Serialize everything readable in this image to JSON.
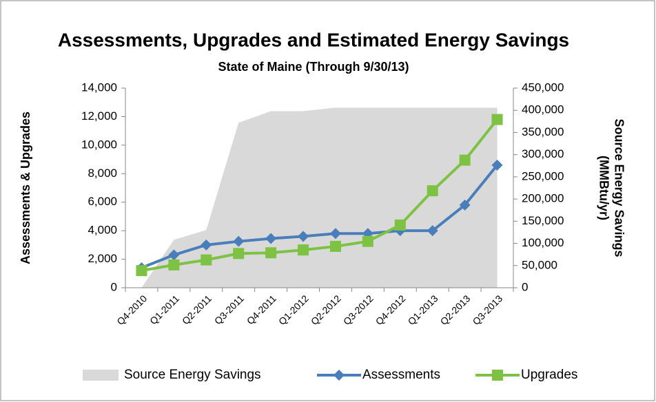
{
  "chart_data": {
    "type": "line",
    "title": "Assessments, Upgrades and Estimated Energy Savings",
    "subtitle": "State of Maine (Through 9/30/13)",
    "ylabel": "Assessments & Upgrades",
    "y2label": [
      "Source Energy Savings",
      "(MMBtu/yr)"
    ],
    "categories": [
      "Q4-2010",
      "Q1-2011",
      "Q2-2011",
      "Q3-2011",
      "Q4-2011",
      "Q1-2012",
      "Q2-2012",
      "Q3-2012",
      "Q4-2012",
      "Q1-2013",
      "Q2-2013",
      "Q3-2013"
    ],
    "series": [
      {
        "name": "Source Energy Savings",
        "color": "#d9d9d9",
        "kind": "area",
        "axis": "y2",
        "values": [
          0,
          108000,
          130000,
          372000,
          398000,
          398000,
          406000,
          406000,
          406000,
          406000,
          406000,
          406000
        ]
      },
      {
        "name": "Assessments",
        "color": "#4a7ebb",
        "kind": "line",
        "marker": "diamond",
        "values": [
          1400,
          2300,
          3000,
          3250,
          3450,
          3600,
          3800,
          3800,
          4000,
          4000,
          5800,
          8600
        ]
      },
      {
        "name": "Upgrades",
        "color": "#7dc242",
        "kind": "line",
        "marker": "square",
        "values": [
          1200,
          1600,
          1950,
          2400,
          2450,
          2650,
          2900,
          3250,
          4400,
          6800,
          8950,
          11800
        ]
      }
    ],
    "ylim": [
      0,
      14000
    ],
    "yticks": [
      0,
      {
        "value": 2000,
        "label": "2,000"
      },
      {
        "value": 4000,
        "label": "4,000"
      },
      {
        "value": 6000,
        "label": "6,000"
      },
      {
        "value": 8000,
        "label": "8,000"
      },
      {
        "value": 10000,
        "label": "10,000"
      },
      {
        "value": 12000,
        "label": "12,000"
      },
      {
        "value": 14000,
        "label": "14,000"
      }
    ],
    "y2lim": [
      0,
      450000
    ],
    "y2ticks": [
      0,
      {
        "value": 50000,
        "label": "50,000"
      },
      {
        "value": 100000,
        "label": "100,000"
      },
      {
        "value": 150000,
        "label": "150,000"
      },
      {
        "value": 200000,
        "label": "200,000"
      },
      {
        "value": 250000,
        "label": "250,000"
      },
      {
        "value": 300000,
        "label": "300,000"
      },
      {
        "value": 350000,
        "label": "350,000"
      },
      {
        "value": 400000,
        "label": "400,000"
      },
      {
        "value": 450000,
        "label": "450,000"
      }
    ],
    "grid": false,
    "legend": "bottom"
  }
}
